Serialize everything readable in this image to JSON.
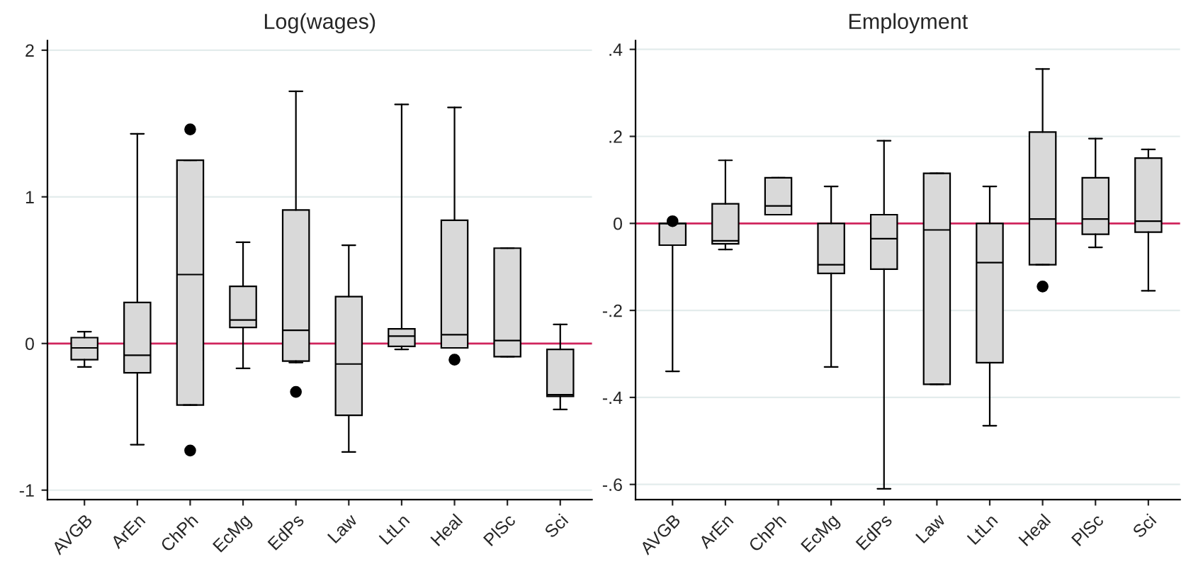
{
  "chart_data": [
    {
      "type": "box",
      "title": "Log(wages)",
      "categories": [
        "AVGB",
        "ArEn",
        "ChPh",
        "EcMg",
        "EdPs",
        "Law",
        "LtLn",
        "Heal",
        "PlSc",
        "Sci"
      ],
      "color": "#d9d9d9",
      "ylim": [
        -1.065,
        2.065
      ],
      "yticks": [
        -1,
        0,
        1,
        2
      ],
      "grid": "y",
      "ref_lines": [
        {
          "axis": "y",
          "value": 0,
          "color": "#d0245c"
        }
      ],
      "boxes": [
        {
          "low": -0.16,
          "q1": -0.11,
          "median": -0.03,
          "q3": 0.04,
          "high": 0.08
        },
        {
          "low": -0.69,
          "q1": -0.2,
          "median": -0.08,
          "q3": 0.28,
          "high": 1.43
        },
        {
          "low": -0.42,
          "q1": -0.42,
          "median": 0.47,
          "q3": 1.25,
          "high": 1.25,
          "outliers": [
            1.46,
            -0.73
          ]
        },
        {
          "low": -0.17,
          "q1": 0.11,
          "median": 0.16,
          "q3": 0.39,
          "high": 0.69
        },
        {
          "low": -0.13,
          "q1": -0.12,
          "median": 0.09,
          "q3": 0.91,
          "high": 1.72,
          "outliers": [
            -0.33
          ]
        },
        {
          "low": -0.74,
          "q1": -0.49,
          "median": -0.14,
          "q3": 0.32,
          "high": 0.67
        },
        {
          "low": -0.04,
          "q1": -0.02,
          "median": 0.05,
          "q3": 0.1,
          "high": 1.63
        },
        {
          "low": -0.03,
          "q1": -0.03,
          "median": 0.06,
          "q3": 0.84,
          "high": 1.61,
          "outliers": [
            -0.11
          ]
        },
        {
          "low": -0.09,
          "q1": -0.09,
          "median": 0.02,
          "q3": 0.65,
          "high": 0.65
        },
        {
          "low": -0.45,
          "q1": -0.36,
          "median": -0.35,
          "q3": -0.04,
          "high": 0.13
        }
      ]
    },
    {
      "type": "box",
      "title": "Employment",
      "categories": [
        "AVGB",
        "ArEn",
        "ChPh",
        "EcMg",
        "EdPs",
        "Law",
        "LtLn",
        "Heal",
        "PlSc",
        "Sci"
      ],
      "color": "#d9d9d9",
      "ylim": [
        -0.635,
        0.42
      ],
      "yticks": [
        {
          "value": -0.6,
          "label": "-.6"
        },
        {
          "value": -0.4,
          "label": "-.4"
        },
        {
          "value": -0.2,
          "label": "-.2"
        },
        0,
        {
          "value": 0.2,
          "label": ".2"
        },
        {
          "value": 0.4,
          "label": ".4"
        }
      ],
      "grid": "y",
      "ref_lines": [
        {
          "axis": "y",
          "value": 0,
          "color": "#d0245c"
        }
      ],
      "boxes": [
        {
          "low": -0.34,
          "q1": -0.05,
          "median": 0.0,
          "q3": 0.0,
          "high": 0.0,
          "outliers": [
            0.005
          ]
        },
        {
          "low": -0.06,
          "q1": -0.047,
          "median": -0.04,
          "q3": 0.045,
          "high": 0.145
        },
        {
          "low": 0.02,
          "q1": 0.02,
          "median": 0.04,
          "q3": 0.105,
          "high": 0.105
        },
        {
          "low": -0.33,
          "q1": -0.115,
          "median": -0.095,
          "q3": 0.0,
          "high": 0.085
        },
        {
          "low": -0.61,
          "q1": -0.105,
          "median": -0.035,
          "q3": 0.02,
          "high": 0.19
        },
        {
          "low": -0.37,
          "q1": -0.37,
          "median": -0.015,
          "q3": 0.115,
          "high": 0.115
        },
        {
          "low": -0.465,
          "q1": -0.32,
          "median": -0.09,
          "q3": 0.0,
          "high": 0.085
        },
        {
          "low": -0.095,
          "q1": -0.095,
          "median": 0.01,
          "q3": 0.21,
          "high": 0.355,
          "outliers": [
            -0.145
          ]
        },
        {
          "low": -0.055,
          "q1": -0.025,
          "median": 0.01,
          "q3": 0.105,
          "high": 0.195
        },
        {
          "low": -0.155,
          "q1": -0.02,
          "median": 0.005,
          "q3": 0.15,
          "high": 0.17
        }
      ]
    }
  ]
}
